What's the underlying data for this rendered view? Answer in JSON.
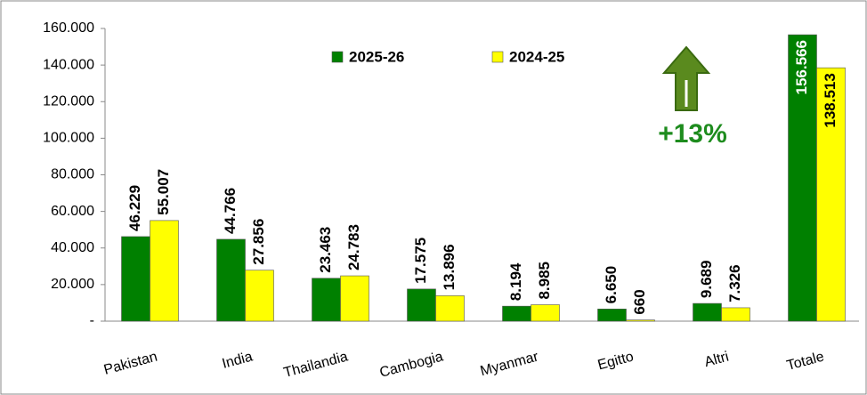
{
  "chart_data": {
    "type": "bar",
    "categories": [
      "Pakistan",
      "India",
      "Thailandia",
      "Cambogia",
      "Myanmar",
      "Egitto",
      "Altri",
      "Totale"
    ],
    "series": [
      {
        "name": "2025-26",
        "color": "#008000",
        "values": [
          46229,
          44766,
          23463,
          17575,
          8194,
          6650,
          9689,
          156566
        ],
        "value_labels": [
          "46.229",
          "44.766",
          "23.463",
          "17.575",
          "8.194",
          "6.650",
          "9.689",
          "156.566"
        ]
      },
      {
        "name": "2024-25",
        "color": "#ffff00",
        "values": [
          55007,
          27856,
          24783,
          13896,
          8985,
          660,
          7326,
          138513
        ],
        "value_labels": [
          "55.007",
          "27.856",
          "24.783",
          "13.896",
          "8.985",
          "660",
          "7.326",
          "138.513"
        ]
      }
    ],
    "ylim": [
      0,
      160000
    ],
    "yticks": [
      {
        "value": 0,
        "label": "-"
      },
      {
        "value": 20000,
        "label": "20.000"
      },
      {
        "value": 40000,
        "label": "40.000"
      },
      {
        "value": 60000,
        "label": "60.000"
      },
      {
        "value": 80000,
        "label": "80.000"
      },
      {
        "value": 100000,
        "label": "100.000"
      },
      {
        "value": 120000,
        "label": "120.000"
      },
      {
        "value": 140000,
        "label": "140.000"
      },
      {
        "value": 160000,
        "label": "160.000"
      }
    ],
    "annotations": [
      "+13%"
    ]
  }
}
